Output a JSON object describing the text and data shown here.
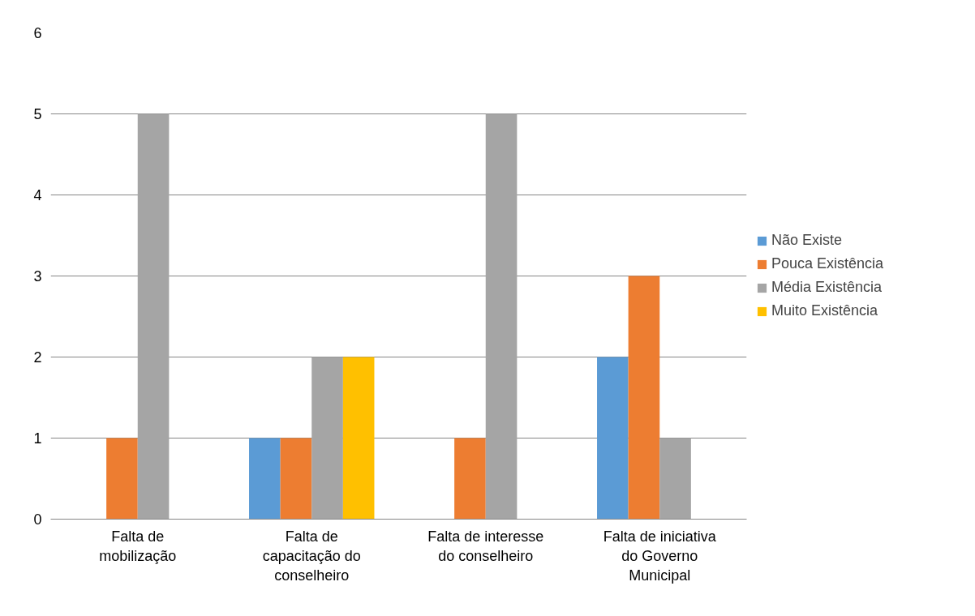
{
  "chart_data": {
    "type": "bar",
    "categories": [
      "Falta de mobilização",
      "Falta de capacitação do conselheiro",
      "Falta de interesse do conselheiro",
      "Falta de iniciativa do Governo Municipal"
    ],
    "series": [
      {
        "name": "Não Existe",
        "color": "#5b9bd5",
        "values": [
          0,
          1,
          0,
          2
        ]
      },
      {
        "name": "Pouca Existência",
        "color": "#ed7d31",
        "values": [
          1,
          1,
          1,
          3
        ]
      },
      {
        "name": "Média Existência",
        "color": "#a5a5a5",
        "values": [
          5,
          2,
          5,
          1
        ]
      },
      {
        "name": "Muito Existência",
        "color": "#ffc000",
        "values": [
          0,
          2,
          0,
          0
        ]
      }
    ],
    "ylim": [
      0,
      6
    ],
    "yticks": [
      0,
      1,
      2,
      3,
      4,
      5,
      6
    ],
    "grid": "y",
    "legend": "right"
  }
}
